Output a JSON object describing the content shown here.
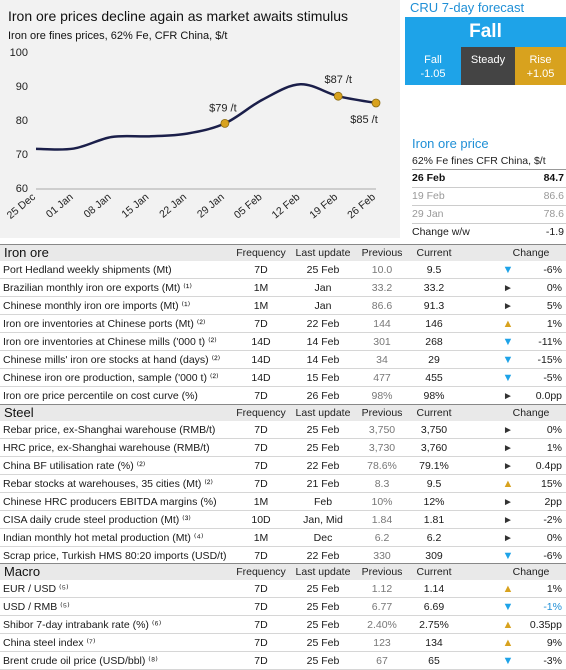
{
  "chart": {
    "title": "Iron ore prices decline again as market awaits stimulus",
    "subtitle": "Iron ore fines prices, 62% Fe, CFR China, $/t"
  },
  "chart_data": {
    "type": "line",
    "title": "Iron ore prices decline again as market awaits stimulus",
    "subtitle": "Iron ore fines prices, 62% Fe, CFR China, $/t",
    "xlabel": "",
    "ylabel": "",
    "ylim": [
      60,
      100
    ],
    "yticks": [
      60,
      70,
      80,
      90,
      100
    ],
    "categories": [
      "25 Dec",
      "01 Jan",
      "08 Jan",
      "15 Jan",
      "22 Jan",
      "29 Jan",
      "05 Feb",
      "12 Feb",
      "19 Feb",
      "26 Feb"
    ],
    "series": [
      {
        "values": [
          71.5,
          71.6,
          75.0,
          75.2,
          76.0,
          79.0,
          86.0,
          90.5,
          87.0,
          85.0
        ]
      }
    ],
    "annotations": [
      {
        "x": "29 Jan",
        "y": 79,
        "label": "$79 /t"
      },
      {
        "x": "19 Feb",
        "y": 87,
        "label": "$87 /t"
      },
      {
        "x": "26 Feb",
        "y": 85,
        "label": "$85 /t"
      }
    ],
    "grid": false,
    "legend": "none",
    "line_color": "#1b1f4a",
    "marker_color": "#d8a21e"
  },
  "forecast": {
    "title": "CRU 7-day forecast",
    "head": "Fall",
    "fall_label": "Fall",
    "fall_value": "-1.05",
    "steady_label": "Steady",
    "rise_label": "Rise",
    "rise_value": "+1.05"
  },
  "iron_price": {
    "title": "Iron ore price",
    "subtitle": "62% Fe fines CFR China, $/t",
    "rows": [
      {
        "date": "26 Feb",
        "value": "84.7"
      },
      {
        "date": "19 Feb",
        "value": "86.6"
      },
      {
        "date": "29 Jan",
        "value": "78.6"
      }
    ],
    "change_label": "Change w/w",
    "change_value": "-1.9"
  },
  "headers": {
    "frequency": "Frequency",
    "last_update": "Last update",
    "previous": "Previous",
    "current": "Current",
    "change": "Change"
  },
  "sections": [
    {
      "name": "Iron ore",
      "rows": [
        {
          "label": "Port Hedland weekly shipments (Mt)",
          "freq": "7D",
          "upd": "25 Feb",
          "prev": "10.0",
          "cur": "9.5",
          "dir": "down",
          "chg": "-6%"
        },
        {
          "label": "Brazilian monthly iron ore exports (Mt) ⁽¹⁾",
          "freq": "1M",
          "upd": "Jan",
          "prev": "33.2",
          "cur": "33.2",
          "dir": "flat",
          "chg": "0%"
        },
        {
          "label": "Chinese monthly iron ore imports (Mt) ⁽¹⁾",
          "freq": "1M",
          "upd": "Jan",
          "prev": "86.6",
          "cur": "91.3",
          "dir": "flat",
          "chg": "5%"
        },
        {
          "label": "Iron ore inventories at Chinese ports (Mt) ⁽²⁾",
          "freq": "7D",
          "upd": "22 Feb",
          "prev": "144",
          "cur": "146",
          "dir": "up",
          "chg": "1%"
        },
        {
          "label": "Iron ore inventories at Chinese mills ('000 t) ⁽²⁾",
          "freq": "14D",
          "upd": "14 Feb",
          "prev": "301",
          "cur": "268",
          "dir": "down",
          "chg": "-11%"
        },
        {
          "label": "Chinese mills' iron ore stocks at hand (days) ⁽²⁾",
          "freq": "14D",
          "upd": "14 Feb",
          "prev": "34",
          "cur": "29",
          "dir": "down",
          "chg": "-15%"
        },
        {
          "label": "Chinese iron ore production, sample ('000 t) ⁽²⁾",
          "freq": "14D",
          "upd": "15 Feb",
          "prev": "477",
          "cur": "455",
          "dir": "down",
          "chg": "-5%"
        },
        {
          "label": "Iron ore price percentile on cost curve (%)",
          "freq": "7D",
          "upd": "26 Feb",
          "prev": "98%",
          "cur": "98%",
          "dir": "flat",
          "chg": "0.0pp"
        }
      ]
    },
    {
      "name": "Steel",
      "rows": [
        {
          "label": "Rebar price, ex-Shanghai warehouse (RMB/t)",
          "freq": "7D",
          "upd": "25 Feb",
          "prev": "3,750",
          "cur": "3,750",
          "dir": "flat",
          "chg": "0%"
        },
        {
          "label": "HRC price, ex-Shanghai warehouse (RMB/t)",
          "freq": "7D",
          "upd": "25 Feb",
          "prev": "3,730",
          "cur": "3,760",
          "dir": "flat",
          "chg": "1%"
        },
        {
          "label": "China BF utilisation rate (%) ⁽²⁾",
          "freq": "7D",
          "upd": "22 Feb",
          "prev": "78.6%",
          "cur": "79.1%",
          "dir": "flat",
          "chg": "0.4pp"
        },
        {
          "label": "Rebar stocks at warehouses, 35 cities (Mt) ⁽²⁾",
          "freq": "7D",
          "upd": "21 Feb",
          "prev": "8.3",
          "cur": "9.5",
          "dir": "up",
          "chg": "15%"
        },
        {
          "label": "Chinese HRC producers EBITDA margins (%)",
          "freq": "1M",
          "upd": "Feb",
          "prev": "10%",
          "cur": "12%",
          "dir": "flat",
          "chg": "2pp"
        },
        {
          "label": "CISA daily crude steel production (Mt) ⁽³⁾",
          "freq": "10D",
          "upd": "Jan, Mid",
          "prev": "1.84",
          "cur": "1.81",
          "dir": "flat",
          "chg": "-2%"
        },
        {
          "label": "Indian monthly hot metal production (Mt) ⁽⁴⁾",
          "freq": "1M",
          "upd": "Dec",
          "prev": "6.2",
          "cur": "6.2",
          "dir": "flat",
          "chg": "0%"
        },
        {
          "label": "Scrap price, Turkish HMS 80:20 imports (USD/t)",
          "freq": "7D",
          "upd": "22 Feb",
          "prev": "330",
          "cur": "309",
          "dir": "down",
          "chg": "-6%"
        }
      ]
    },
    {
      "name": "Macro",
      "rows": [
        {
          "label": "EUR / USD ⁽⁵⁾",
          "freq": "7D",
          "upd": "25 Feb",
          "prev": "1.12",
          "cur": "1.14",
          "dir": "up",
          "chg": "1%"
        },
        {
          "label": "USD / RMB ⁽⁵⁾",
          "freq": "7D",
          "upd": "25 Feb",
          "prev": "6.77",
          "cur": "6.69",
          "dir": "down",
          "chg": "-1%"
        },
        {
          "label": "Shibor 7-day intrabank rate (%) ⁽⁶⁾",
          "freq": "7D",
          "upd": "25 Feb",
          "prev": "2.40%",
          "cur": "2.75%",
          "dir": "up",
          "chg": "0.35pp"
        },
        {
          "label": "China steel index ⁽⁷⁾",
          "freq": "7D",
          "upd": "25 Feb",
          "prev": "123",
          "cur": "134",
          "dir": "up",
          "chg": "9%"
        },
        {
          "label": "Brent crude oil price (USD/bbl) ⁽⁸⁾",
          "freq": "7D",
          "upd": "25 Feb",
          "prev": "67",
          "cur": "65",
          "dir": "down",
          "chg": "-3%"
        }
      ]
    }
  ]
}
